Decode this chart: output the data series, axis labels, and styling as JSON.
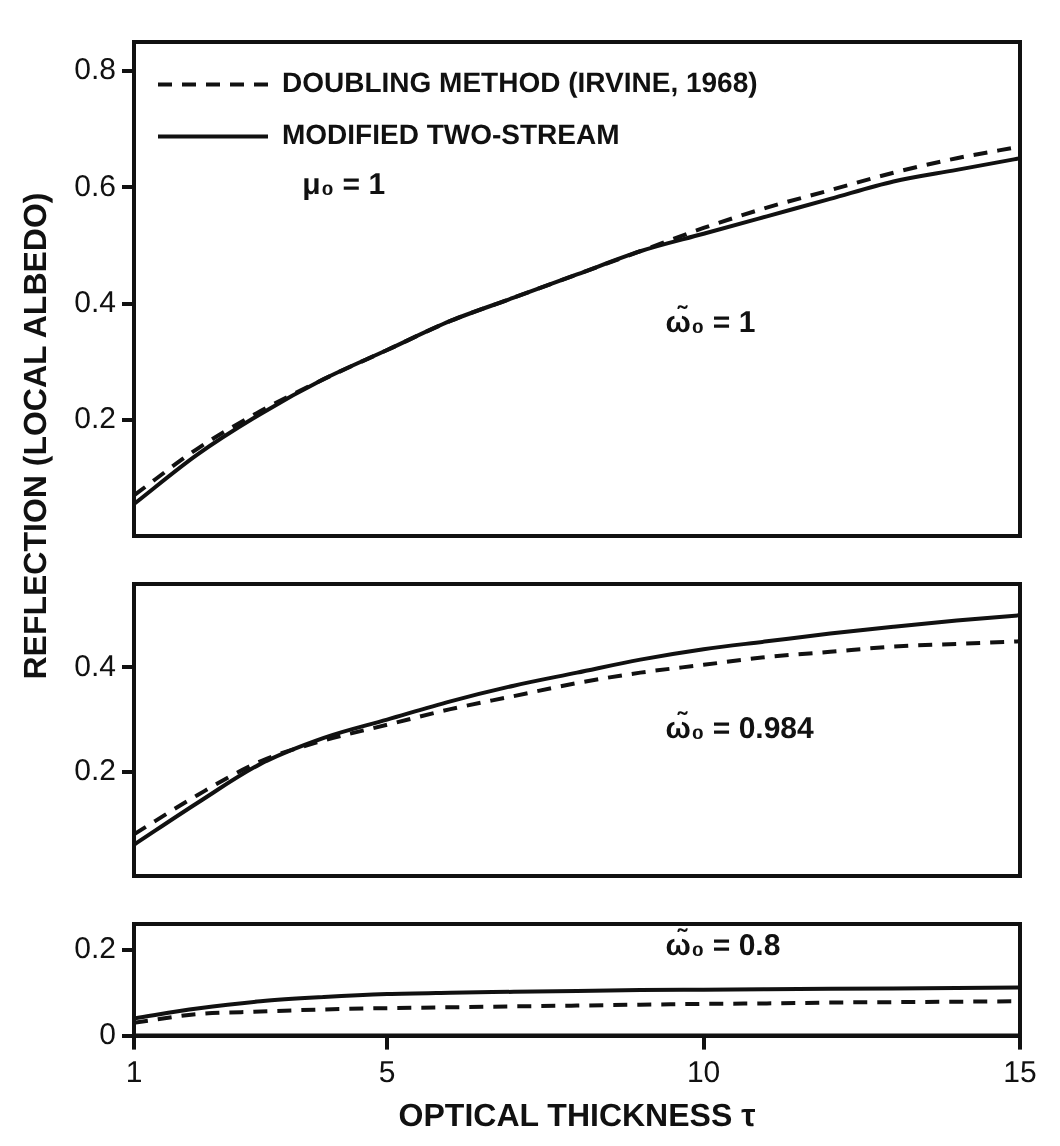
{
  "chart_data": [
    {
      "type": "line",
      "x": [
        1,
        2,
        3,
        4,
        5,
        6,
        7,
        8,
        9,
        10,
        11,
        12,
        13,
        14,
        15
      ],
      "xlim": [
        1,
        15
      ],
      "xticks": [
        1,
        5,
        10,
        15
      ],
      "ylim": [
        0,
        0.85
      ],
      "yticks": [
        0.2,
        0.4,
        0.6,
        0.8
      ],
      "tick_labels": "y",
      "grid": false,
      "legend": "top left",
      "marker": "none",
      "ylabel": "REFLECTION (LOCAL ALBEDO)",
      "annotations": [
        "μ₀ = 1",
        "ω̃₀ = 1"
      ],
      "series": [
        {
          "name": "DOUBLING METHOD (IRVINE, 1968)",
          "color": "#111111",
          "line_style": "dashed",
          "values": [
            0.07,
            0.15,
            0.215,
            0.27,
            0.32,
            0.37,
            0.41,
            0.45,
            0.49,
            0.53,
            0.565,
            0.595,
            0.625,
            0.65,
            0.67
          ]
        },
        {
          "name": "MODIFIED TWO-STREAM",
          "color": "#111111",
          "line_style": "solid",
          "values": [
            0.055,
            0.14,
            0.21,
            0.27,
            0.32,
            0.37,
            0.41,
            0.45,
            0.49,
            0.52,
            0.55,
            0.58,
            0.61,
            0.63,
            0.65
          ]
        }
      ]
    },
    {
      "type": "line",
      "x": [
        1,
        2,
        3,
        4,
        5,
        6,
        7,
        8,
        9,
        10,
        11,
        12,
        13,
        14,
        15
      ],
      "xlim": [
        1,
        15
      ],
      "xticks": [
        1,
        5,
        10,
        15
      ],
      "ylim": [
        0,
        0.56
      ],
      "yticks": [
        0.2,
        0.4
      ],
      "tick_labels": "y",
      "grid": false,
      "marker": "none",
      "annotations": [
        "ω̃₀ = 0.984"
      ],
      "series": [
        {
          "color": "#111111",
          "line_style": "dashed",
          "values": [
            0.08,
            0.155,
            0.22,
            0.26,
            0.29,
            0.32,
            0.345,
            0.37,
            0.39,
            0.405,
            0.42,
            0.43,
            0.44,
            0.445,
            0.45
          ]
        },
        {
          "color": "#111111",
          "line_style": "solid",
          "values": [
            0.06,
            0.14,
            0.215,
            0.265,
            0.3,
            0.335,
            0.365,
            0.39,
            0.415,
            0.435,
            0.45,
            0.465,
            0.478,
            0.49,
            0.5
          ]
        }
      ]
    },
    {
      "type": "line",
      "x": [
        1,
        2,
        3,
        4,
        5,
        6,
        7,
        8,
        9,
        10,
        11,
        12,
        13,
        14,
        15
      ],
      "xlim": [
        1,
        15
      ],
      "xticks": [
        1,
        5,
        10,
        15
      ],
      "ylim": [
        0,
        0.26
      ],
      "yticks": [
        0,
        0.2
      ],
      "grid": false,
      "marker": "none",
      "xlabel": "OPTICAL THICKNESS τ",
      "annotations": [
        "ω̃₀ = 0.8"
      ],
      "series": [
        {
          "color": "#111111",
          "line_style": "dashed",
          "values": [
            0.03,
            0.05,
            0.056,
            0.061,
            0.064,
            0.066,
            0.068,
            0.07,
            0.072,
            0.074,
            0.075,
            0.077,
            0.078,
            0.079,
            0.08
          ]
        },
        {
          "color": "#111111",
          "line_style": "solid",
          "values": [
            0.04,
            0.063,
            0.08,
            0.09,
            0.097,
            0.1,
            0.102,
            0.104,
            0.106,
            0.107,
            0.108,
            0.109,
            0.11,
            0.111,
            0.112
          ]
        }
      ]
    }
  ]
}
